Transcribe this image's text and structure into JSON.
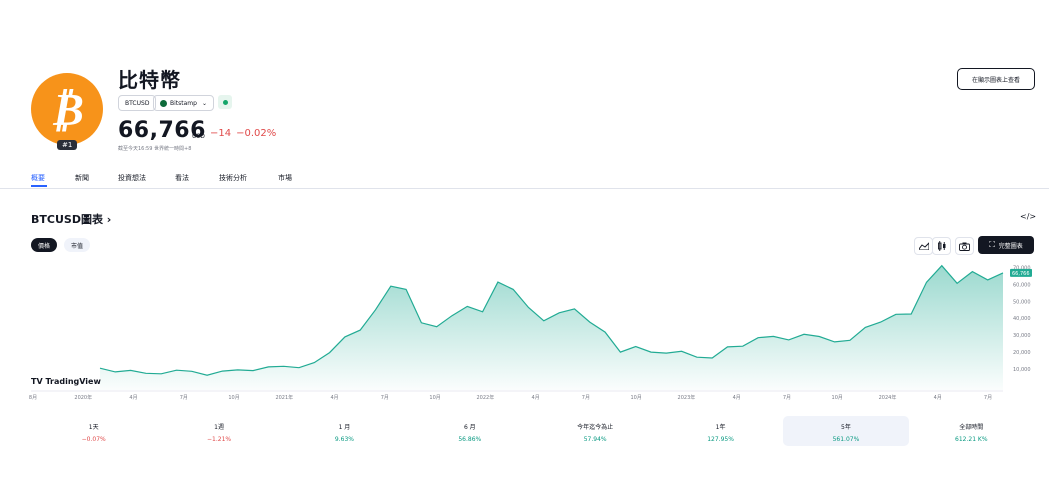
{
  "asset": {
    "name": "比特幣",
    "logo_glyph": "₿",
    "rank": "#1",
    "symbol": "BTCUSD",
    "exchange": "Bitstamp",
    "price": "66,766",
    "currency": "USD",
    "change": "−14",
    "change_pct": "−0.02%",
    "meta": "截至今天16:59 世界統一時間+8",
    "top_button": "在顯示圖表上查看"
  },
  "tabs": [
    "概要",
    "新聞",
    "投資想法",
    "看法",
    "技術分析",
    "市場"
  ],
  "chart_header": {
    "title": "BTCUSD圖表 ›",
    "embed_icon": "</>",
    "seg_price": "價格",
    "seg_market": "市值",
    "full_chart": "完整圖表"
  },
  "colors": {
    "accent": "#2962ff",
    "line": "#22ab94",
    "up": "#089981",
    "down": "#e04a4a"
  },
  "chart_data": {
    "type": "area",
    "x_ticks": [
      "8月",
      "2020年",
      "4月",
      "7月",
      "10月",
      "2021年",
      "4月",
      "7月",
      "10月",
      "2022年",
      "4月",
      "7月",
      "10月",
      "2023年",
      "4月",
      "7月",
      "10月",
      "2024年",
      "4月",
      "7月"
    ],
    "y_ticks": [
      "10,000",
      "20,000",
      "30,000",
      "40,000",
      "50,000",
      "60,000",
      "70,000"
    ],
    "ylim": [
      0,
      72000
    ],
    "last_value_label": "66,766",
    "watermark": "TradingView",
    "x": [
      "2019-08",
      "2019-09",
      "2019-10",
      "2019-11",
      "2019-12",
      "2020-01",
      "2020-02",
      "2020-03",
      "2020-04",
      "2020-05",
      "2020-06",
      "2020-07",
      "2020-08",
      "2020-09",
      "2020-10",
      "2020-11",
      "2020-12",
      "2021-01",
      "2021-02",
      "2021-03",
      "2021-04",
      "2021-05",
      "2021-06",
      "2021-07",
      "2021-08",
      "2021-09",
      "2021-10",
      "2021-11",
      "2021-12",
      "2022-01",
      "2022-02",
      "2022-03",
      "2022-04",
      "2022-05",
      "2022-06",
      "2022-07",
      "2022-08",
      "2022-09",
      "2022-10",
      "2022-11",
      "2022-12",
      "2023-01",
      "2023-02",
      "2023-03",
      "2023-04",
      "2023-05",
      "2023-06",
      "2023-07",
      "2023-08",
      "2023-09",
      "2023-10",
      "2023-11",
      "2023-12",
      "2024-01",
      "2024-02",
      "2024-03",
      "2024-04",
      "2024-05",
      "2024-06",
      "2024-07"
    ],
    "series": [
      {
        "values": [
          10500,
          8300,
          9200,
          7500,
          7200,
          9300,
          8700,
          6400,
          8800,
          9500,
          9100,
          11300,
          11600,
          10800,
          13800,
          19700,
          29000,
          33000,
          45000,
          58900,
          57000,
          37300,
          35000,
          41500,
          47000,
          43800,
          61300,
          57000,
          46300,
          38500,
          43200,
          45500,
          37700,
          31800,
          20000,
          23300,
          20000,
          19400,
          20500,
          17000,
          16500,
          23100,
          23500,
          28500,
          29300,
          27200,
          30500,
          29200,
          26000,
          27000,
          34600,
          37700,
          42300,
          42500,
          61200,
          71000,
          60600,
          67500,
          62600,
          66766
        ]
      }
    ]
  },
  "periods": [
    {
      "label": "1天",
      "value": "−0.07%",
      "dir": "neg"
    },
    {
      "label": "1週",
      "value": "−1.21%",
      "dir": "neg"
    },
    {
      "label": "1 月",
      "value": "9.63%",
      "dir": "pos"
    },
    {
      "label": "6 月",
      "value": "56.86%",
      "dir": "pos"
    },
    {
      "label": "今年迄今為止",
      "value": "57.94%",
      "dir": "pos"
    },
    {
      "label": "1年",
      "value": "127.95%",
      "dir": "pos"
    },
    {
      "label": "5年",
      "value": "561.07%",
      "dir": "pos",
      "active": true
    },
    {
      "label": "全部時間",
      "value": "612.21 K%",
      "dir": "pos"
    }
  ]
}
